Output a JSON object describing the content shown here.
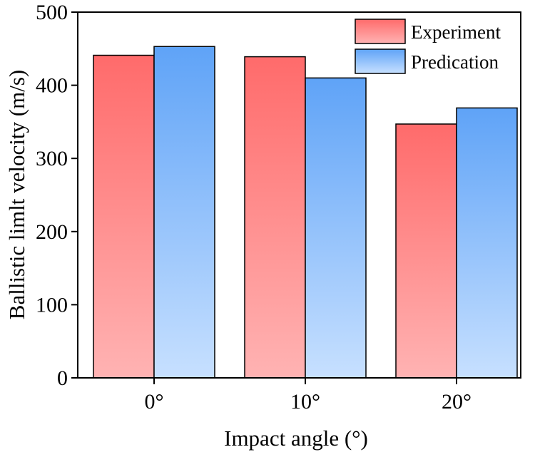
{
  "chart_data": {
    "type": "bar",
    "categories": [
      "0°",
      "10°",
      "20°"
    ],
    "series": [
      {
        "name": "Experiment",
        "values": [
          441,
          439,
          347
        ],
        "color": "#ff6b6b"
      },
      {
        "name": "Predication",
        "values": [
          453,
          410,
          369
        ],
        "color": "#5fa3f7"
      }
    ],
    "xlabel": "Impact angle (°)",
    "ylabel": "Ballistic limlt velocity (m/s)",
    "ylim": [
      0,
      500
    ],
    "yticks": [
      0,
      100,
      200,
      300,
      400,
      500
    ],
    "grid": false,
    "legend_position": "top-right"
  }
}
